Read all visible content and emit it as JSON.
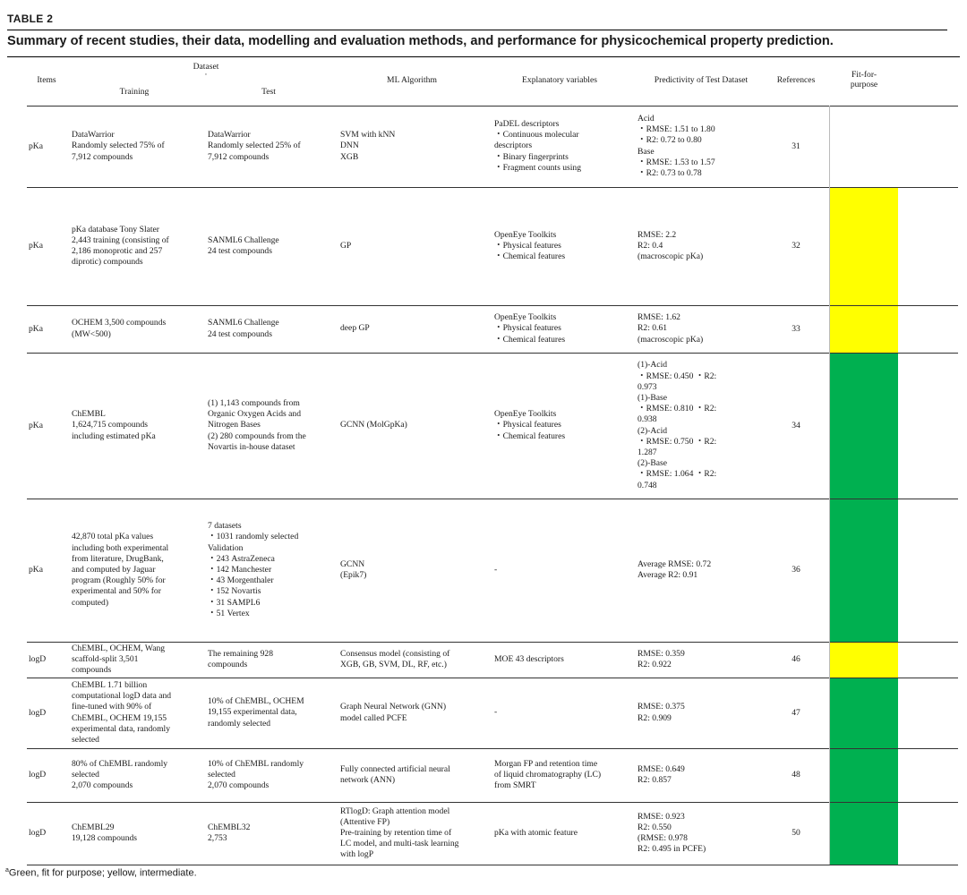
{
  "table_label": "TABLE 2",
  "caption": "Summary of recent studies, their data, modelling and evaluation methods, and performance for physicochemical property prediction.",
  "header": {
    "items": "Items",
    "dataset": "Dataset",
    "training": "Training",
    "test": "Test",
    "ml_algorithm": "ML Algorithm",
    "explanatory_variables": "Explanatory variables",
    "predictivity": "Predictivity of Test Dataset",
    "references": "References",
    "fit_for_purpose": [
      "Fit-for-",
      "purpose"
    ]
  },
  "colors": {
    "green": "#00b050",
    "yellow": "#ffff00"
  },
  "rows": [
    {
      "item": "pKa",
      "training": [
        "DataWarrior",
        "Randomly selected 75% of",
        "7,912 compounds"
      ],
      "test": [
        "DataWarrior",
        "Randomly selected 25% of",
        "7,912 compounds"
      ],
      "ml": [
        "SVM with kNN",
        "DNN",
        "XGB"
      ],
      "explanatory": [
        "PaDEL descriptors",
        "・Continuous molecular",
        "descriptors",
        "・Binary fingerprints",
        "・Fragment counts using"
      ],
      "predictivity": [
        "Acid",
        "・RMSE: 1.51 to 1.80",
        "・R2: 0.72 to 0.80",
        "Base",
        "・RMSE: 1.53 to 1.57",
        "・R2: 0.73 to 0.78"
      ],
      "ref": "31",
      "fit": "none"
    },
    {
      "item": "pKa",
      "training": [
        "pKa database Tony Slater",
        "2,443 training (consisting of",
        "2,186 monoprotic and 257",
        "diprotic) compounds"
      ],
      "test": [
        "SANML6 Challenge",
        "24 test compounds"
      ],
      "ml": [
        "GP"
      ],
      "explanatory": [
        "OpenEye Toolkits",
        "・Physical features",
        "・Chemical features"
      ],
      "predictivity": [
        "RMSE: 2.2",
        "R2: 0.4",
        "(macroscopic pKa)"
      ],
      "ref": "32",
      "fit": "yellow"
    },
    {
      "item": "pKa",
      "training": [
        "OCHEM 3,500 compounds",
        "(MW<500)"
      ],
      "test": [
        "SANML6 Challenge",
        "24 test compounds"
      ],
      "ml": [
        "deep GP"
      ],
      "explanatory": [
        "OpenEye Toolkits",
        "・Physical features",
        "・Chemical features"
      ],
      "predictivity": [
        "RMSE: 1.62",
        "R2: 0.61",
        "(macroscopic pKa)"
      ],
      "ref": "33",
      "fit": "yellow"
    },
    {
      "item": "pKa",
      "training": [
        "ChEMBL",
        "1,624,715 compounds",
        "including estimated pKa"
      ],
      "test": [
        "(1) 1,143 compounds from",
        "Organic Oxygen Acids and",
        "Nitrogen Bases",
        "(2) 280 compounds from the",
        "Novartis in-house dataset"
      ],
      "ml": [
        "GCNN (MolGpKa)"
      ],
      "explanatory": [
        "OpenEye Toolkits",
        "・Physical features",
        "・Chemical features"
      ],
      "predictivity": [
        "(1)-Acid",
        "・RMSE: 0.450 ・R2:",
        "0.973",
        "(1)-Base",
        "・RMSE: 0.810 ・R2:",
        "0.938",
        "(2)-Acid",
        "・RMSE: 0.750 ・R2:",
        "1.287",
        "(2)-Base",
        "・RMSE: 1.064 ・R2:",
        "0.748"
      ],
      "ref": "34",
      "fit": "green"
    },
    {
      "item": "pKa",
      "training": [
        "42,870 total pKa values",
        "including both experimental",
        "from literature, DrugBank,",
        "and computed by Jaguar",
        "program (Roughly 50% for",
        "experimental and 50% for",
        "computed)"
      ],
      "test": [
        "7 datasets",
        "・1031 randomly selected",
        "Validation",
        "・243 AstraZeneca",
        "・142 Manchester",
        "・43 Morgenthaler",
        "・152 Novartis",
        "・31 SAMPL6",
        "・51 Vertex"
      ],
      "ml": [
        "GCNN",
        "(Epik7)"
      ],
      "explanatory": [
        "-"
      ],
      "predictivity": [
        "Average RMSE: 0.72",
        "Average R2: 0.91"
      ],
      "ref": "36",
      "fit": "green"
    },
    {
      "item": "logD",
      "training": [
        "ChEMBL, OCHEM, Wang",
        "scaffold-split 3,501",
        "compounds"
      ],
      "test": [
        "The remaining 928",
        "compounds"
      ],
      "ml": [
        "Consensus model (consisting of",
        "XGB, GB, SVM, DL, RF, etc.)"
      ],
      "explanatory": [
        "MOE 43 descriptors"
      ],
      "predictivity": [
        "RMSE: 0.359",
        "R2: 0.922"
      ],
      "ref": "46",
      "fit": "yellow"
    },
    {
      "item": "logD",
      "training": [
        "ChEMBL 1.71 billion",
        "computational logD data and",
        "fine-tuned with 90% of",
        "ChEMBL, OCHEM 19,155",
        "experimental data, randomly",
        "selected"
      ],
      "test": [
        "10% of ChEMBL, OCHEM",
        "19,155 experimental data,",
        "randomly selected"
      ],
      "ml": [
        "Graph Neural Network (GNN)",
        "model called PCFE"
      ],
      "explanatory": [
        "-"
      ],
      "predictivity": [
        "RMSE: 0.375",
        "R2: 0.909"
      ],
      "ref": "47",
      "fit": "green"
    },
    {
      "item": "logD",
      "training": [
        "80% of ChEMBL randomly",
        "selected",
        "2,070 compounds"
      ],
      "test": [
        "10% of ChEMBL randomly",
        "selected",
        "2,070 compounds"
      ],
      "ml": [
        "Fully connected artificial neural",
        "network (ANN)"
      ],
      "explanatory": [
        "Morgan FP and retention time",
        "of liquid chromatography (LC)",
        "from SMRT"
      ],
      "predictivity": [
        "RMSE: 0.649",
        "R2: 0.857"
      ],
      "ref": "48",
      "fit": "green"
    },
    {
      "item": "logD",
      "training": [
        "ChEMBL29",
        "19,128 compounds"
      ],
      "test": [
        "ChEMBL32",
        "2,753"
      ],
      "ml": [
        "RTlogD: Graph attention model",
        "(Attentive FP)",
        "Pre-training by retention time of",
        "LC model, and multi-task learning",
        "with logP"
      ],
      "explanatory": [
        "pKa with atomic feature"
      ],
      "predictivity": [
        "RMSE: 0.923",
        "R2: 0.550",
        "(RMSE: 0.978",
        "R2: 0.495 in PCFE)"
      ],
      "ref": "50",
      "fit": "green"
    }
  ],
  "footnote_marker": "a",
  "footnote": "Green, fit for purpose; yellow, intermediate."
}
